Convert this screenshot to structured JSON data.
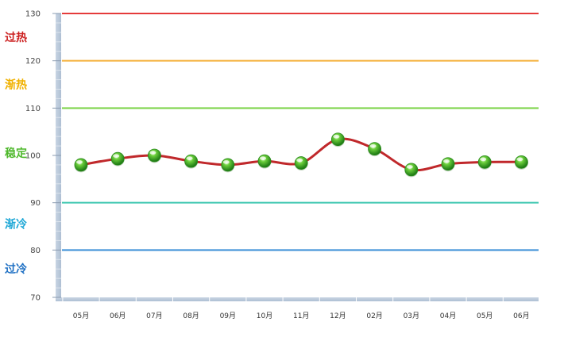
{
  "chart_data": {
    "type": "line",
    "categories": [
      "05月",
      "06月",
      "07月",
      "08月",
      "09月",
      "10月",
      "11月",
      "12月",
      "02月",
      "03月",
      "04月",
      "05月",
      "06月"
    ],
    "values": [
      98,
      99.3,
      100,
      98.8,
      98,
      98.8,
      98.4,
      103.4,
      101.4,
      97,
      98.2,
      98.6,
      98.6
    ],
    "ylim": [
      70,
      130
    ],
    "yticks": [
      70,
      80,
      90,
      100,
      110,
      120,
      130
    ],
    "line_color": "#c0282b",
    "marker_color": "#3da02a",
    "thresholds": [
      {
        "value": 130,
        "color": "#e53b3b"
      },
      {
        "value": 120,
        "color": "#f5b03a"
      },
      {
        "value": 110,
        "color": "#7dd44a"
      },
      {
        "value": 90,
        "color": "#3dc7b0"
      },
      {
        "value": 80,
        "color": "#3c8fd6"
      }
    ],
    "zones": [
      {
        "label": "过热",
        "value": 125,
        "color": "#cc1f1f"
      },
      {
        "label": "渐热",
        "value": 115,
        "color": "#f0b100"
      },
      {
        "label": "稳定",
        "value": 100.5,
        "color": "#4fb82c"
      },
      {
        "label": "渐冷",
        "value": 85.5,
        "color": "#1ea7d6"
      },
      {
        "label": "过冷",
        "value": 76,
        "color": "#1d6fc3"
      }
    ]
  }
}
